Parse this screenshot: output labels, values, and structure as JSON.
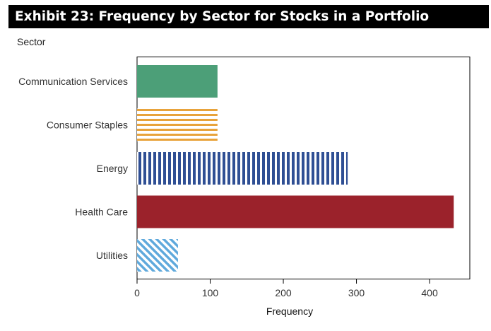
{
  "header": {
    "title": "Exhibit 23: Frequency by Sector for Stocks in a Portfolio"
  },
  "chart_data": {
    "type": "bar",
    "orientation": "horizontal",
    "title": "Exhibit 23: Frequency by Sector for Stocks in a Portfolio",
    "xlabel": "Frequency",
    "ylabel": "Sector",
    "categories": [
      "Communication Services",
      "Consumer Staples",
      "Energy",
      "Health Care",
      "Utilities"
    ],
    "values": [
      110,
      110,
      288,
      433,
      56
    ],
    "xlim": [
      0,
      455
    ],
    "xticks": [
      0,
      100,
      200,
      300,
      400
    ],
    "grid": false,
    "legend": "none",
    "colors": [
      "#4c9f78",
      "#e8a33b",
      "#2f4f94",
      "#9b222b",
      "#5fa9dc"
    ],
    "patterns": [
      "solid",
      "horizontal-stripes",
      "vertical-stripes",
      "solid",
      "diagonal-stripes"
    ]
  }
}
